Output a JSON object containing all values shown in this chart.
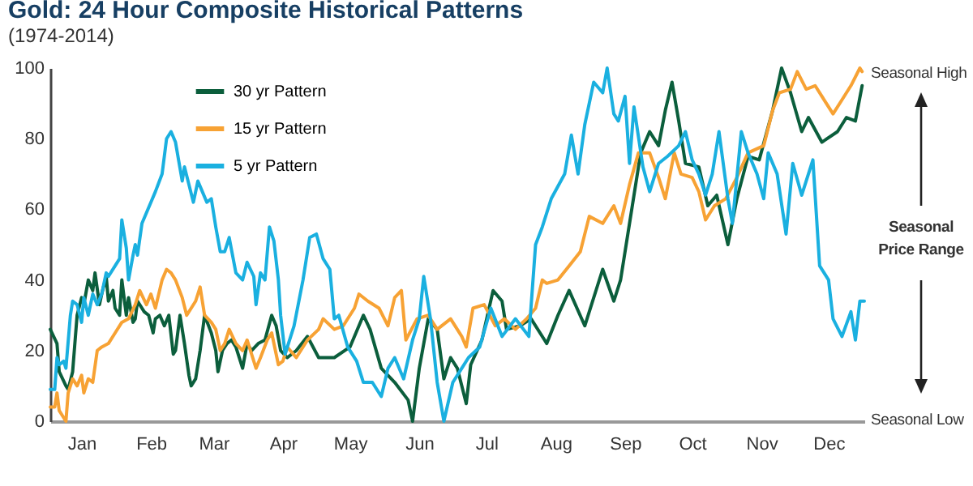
{
  "chart_data": {
    "type": "line",
    "title": "Gold: 24 Hour Composite Historical Patterns",
    "subtitle": "(1974-2014)",
    "annotations": [
      "Seasonal High",
      "Seasonal Price Range",
      "Seasonal Low"
    ],
    "xlim": [
      "--01-01",
      "--12-31"
    ],
    "xticks": [
      {
        "value": "--01-15",
        "label": "Jan"
      },
      {
        "value": "--02-15",
        "label": "Feb"
      },
      {
        "value": "--03-15",
        "label": "Mar"
      },
      {
        "value": "--04-15",
        "label": "Apr"
      },
      {
        "value": "--05-15",
        "label": "May"
      },
      {
        "value": "--06-15",
        "label": "Jun"
      },
      {
        "value": "--07-15",
        "label": "Jul"
      },
      {
        "value": "--08-15",
        "label": "Aug"
      },
      {
        "value": "--09-15",
        "label": "Sep"
      },
      {
        "value": "--10-15",
        "label": "Oct"
      },
      {
        "value": "--11-15",
        "label": "Nov"
      },
      {
        "value": "--12-15",
        "label": "Dec"
      }
    ],
    "ylim": [
      0,
      100
    ],
    "yticks": [
      0,
      20,
      40,
      60,
      80,
      100
    ],
    "grid": false,
    "legend": "top left",
    "line_style": "solid",
    "series": [
      {
        "name": "30 yr Pattern",
        "color": "#0b5e3c",
        "x": [
          "--01-01",
          "--01-04",
          "--01-05",
          "--01-08",
          "--01-09",
          "--01-11",
          "--01-13",
          "--01-15",
          "--01-16",
          "--01-18",
          "--01-20",
          "--01-21",
          "--01-23",
          "--01-24",
          "--01-26",
          "--01-27",
          "--01-29",
          "--01-30",
          "--02-01",
          "--02-02",
          "--02-04",
          "--02-05",
          "--02-07",
          "--02-08",
          "--02-09",
          "--02-12",
          "--02-14",
          "--02-16",
          "--02-17",
          "--02-19",
          "--02-21",
          "--02-23",
          "--02-25",
          "--02-26",
          "--02-28",
          "--03-02",
          "--03-04",
          "--03-05",
          "--03-07",
          "--03-09",
          "--03-11",
          "--03-14",
          "--03-16",
          "--03-17",
          "--03-19",
          "--03-21",
          "--03-23",
          "--03-25",
          "--03-28",
          "--03-30",
          "--04-01",
          "--04-04",
          "--04-07",
          "--04-10",
          "--04-12",
          "--04-14",
          "--04-17",
          "--04-21",
          "--04-26",
          "--05-01",
          "--05-08",
          "--05-15",
          "--05-21",
          "--05-24",
          "--05-29",
          "--06-04",
          "--06-10",
          "--06-12",
          "--06-15",
          "--06-19",
          "--06-23",
          "--06-26",
          "--06-29",
          "--07-02",
          "--07-06",
          "--07-08",
          "--07-13",
          "--07-18",
          "--07-22",
          "--07-24",
          "--07-30",
          "--08-04",
          "--08-10",
          "--08-11",
          "--08-16",
          "--08-21",
          "--08-28",
          "--09-05",
          "--09-10",
          "--09-13",
          "--09-17",
          "--09-22",
          "--09-26",
          "--09-30",
          "--10-03",
          "--10-06",
          "--10-09",
          "--10-12",
          "--10-18",
          "--10-22",
          "--10-26",
          "--10-31",
          "--11-04",
          "--11-09",
          "--11-14",
          "--11-20",
          "--11-24",
          "--11-28",
          "--12-03",
          "--12-06",
          "--12-12",
          "--12-19",
          "--12-23",
          "--12-27",
          "--12-30"
        ],
        "values": [
          26,
          22,
          14,
          10,
          9,
          14,
          30,
          35,
          33,
          40,
          37,
          42,
          33,
          36,
          41,
          34,
          37,
          32,
          30,
          40,
          30,
          35,
          28,
          29,
          34,
          31,
          30,
          25,
          29,
          30,
          27,
          30,
          19,
          20,
          30,
          22,
          13,
          10,
          12,
          20,
          30,
          25,
          20,
          14,
          20,
          22,
          23,
          21,
          15,
          22,
          20,
          22,
          23,
          30,
          27,
          20,
          18,
          20,
          24,
          18,
          18,
          21,
          30,
          26,
          15,
          11,
          6,
          0,
          15,
          29,
          26,
          12,
          18,
          15,
          5,
          16,
          23,
          37,
          34,
          26,
          27,
          29,
          23,
          22,
          30,
          37,
          27,
          43,
          34,
          40,
          56,
          76,
          82,
          78,
          88,
          96,
          85,
          73,
          72,
          61,
          64,
          50,
          63,
          75,
          74,
          88,
          100,
          93,
          82,
          86,
          79,
          82,
          86,
          85,
          95
        ]
      },
      {
        "name": "15 yr Pattern",
        "color": "#f7a234",
        "x": [
          "--01-01",
          "--01-03",
          "--01-04",
          "--01-05",
          "--01-08",
          "--01-09",
          "--01-11",
          "--01-13",
          "--01-15",
          "--01-16",
          "--01-18",
          "--01-20",
          "--01-22",
          "--01-24",
          "--01-27",
          "--01-30",
          "--02-02",
          "--02-05",
          "--02-08",
          "--02-10",
          "--02-13",
          "--02-15",
          "--02-17",
          "--02-20",
          "--02-22",
          "--02-24",
          "--02-26",
          "--03-01",
          "--03-03",
          "--03-05",
          "--03-07",
          "--03-09",
          "--03-11",
          "--03-14",
          "--03-16",
          "--03-18",
          "--03-20",
          "--03-22",
          "--03-25",
          "--03-28",
          "--03-30",
          "--04-01",
          "--04-03",
          "--04-05",
          "--04-08",
          "--04-10",
          "--04-13",
          "--04-15",
          "--04-17",
          "--04-21",
          "--04-26",
          "--05-01",
          "--05-03",
          "--05-08",
          "--05-12",
          "--05-17",
          "--05-19",
          "--05-23",
          "--05-28",
          "--06-01",
          "--06-04",
          "--06-07",
          "--06-09",
          "--06-14",
          "--06-19",
          "--06-23",
          "--06-29",
          "--07-04",
          "--07-06",
          "--07-09",
          "--07-14",
          "--07-19",
          "--07-23",
          "--07-28",
          "--08-02",
          "--08-06",
          "--08-09",
          "--08-11",
          "--08-16",
          "--08-21",
          "--08-26",
          "--08-30",
          "--09-05",
          "--09-10",
          "--09-13",
          "--09-17",
          "--09-21",
          "--09-26",
          "--09-30",
          "--10-03",
          "--10-07",
          "--10-10",
          "--10-15",
          "--10-18",
          "--10-21",
          "--10-25",
          "--10-30",
          "--11-04",
          "--11-09",
          "--11-16",
          "--11-20",
          "--11-23",
          "--11-28",
          "--12-01",
          "--12-05",
          "--12-09",
          "--12-14",
          "--12-17",
          "--12-21",
          "--12-25",
          "--12-29",
          "--12-30"
        ],
        "values": [
          4,
          4,
          8,
          3,
          0,
          8,
          12,
          10,
          13,
          8,
          12,
          11,
          20,
          21,
          22,
          25,
          28,
          29,
          33,
          37,
          33,
          36,
          32,
          40,
          43,
          42,
          40,
          35,
          30,
          32,
          34,
          38,
          30,
          28,
          26,
          20,
          22,
          26,
          22,
          20,
          23,
          19,
          15,
          18,
          23,
          25,
          16,
          17,
          21,
          18,
          23,
          26,
          29,
          26,
          27,
          32,
          36,
          34,
          32,
          27,
          35,
          37,
          23,
          29,
          30,
          26,
          29,
          24,
          21,
          32,
          33,
          27,
          29,
          26,
          29,
          32,
          40,
          39,
          40,
          44,
          48,
          58,
          56,
          61,
          56,
          67,
          76,
          76,
          69,
          63,
          76,
          70,
          69,
          65,
          57,
          61,
          63,
          69,
          76,
          78,
          88,
          93,
          94,
          99,
          94,
          95,
          90,
          87,
          91,
          95,
          100,
          99
        ]
      },
      {
        "name": "5 yr Pattern",
        "color": "#1ab0e0",
        "x": [
          "--01-01",
          "--01-03",
          "--01-04",
          "--01-05",
          "--01-07",
          "--01-08",
          "--01-10",
          "--01-11",
          "--01-13",
          "--01-15",
          "--01-16",
          "--01-18",
          "--01-20",
          "--01-22",
          "--01-24",
          "--01-26",
          "--01-27",
          "--01-30",
          "--02-01",
          "--02-02",
          "--02-04",
          "--02-05",
          "--02-07",
          "--02-08",
          "--02-09",
          "--02-11",
          "--02-13",
          "--02-15",
          "--02-17",
          "--02-20",
          "--02-22",
          "--02-24",
          "--02-26",
          "--03-01",
          "--03-02",
          "--03-04",
          "--03-06",
          "--03-08",
          "--03-10",
          "--03-12",
          "--03-14",
          "--03-16",
          "--03-18",
          "--03-20",
          "--03-22",
          "--03-25",
          "--03-28",
          "--03-30",
          "--04-02",
          "--04-03",
          "--04-05",
          "--04-07",
          "--04-09",
          "--04-11",
          "--04-13",
          "--04-14",
          "--04-16",
          "--04-20",
          "--04-24",
          "--04-27",
          "--04-30",
          "--05-03",
          "--05-06",
          "--05-08",
          "--05-10",
          "--05-14",
          "--05-18",
          "--05-21",
          "--05-25",
          "--05-29",
          "--06-01",
          "--06-04",
          "--06-08",
          "--06-12",
          "--06-15",
          "--06-17",
          "--06-20",
          "--06-23",
          "--06-26",
          "--06-30",
          "--07-04",
          "--07-07",
          "--07-12",
          "--07-17",
          "--07-22",
          "--07-28",
          "--08-03",
          "--08-06",
          "--08-09",
          "--08-13",
          "--08-19",
          "--08-22",
          "--08-25",
          "--08-28",
          "--09-01",
          "--09-05",
          "--09-07",
          "--09-10",
          "--09-12",
          "--09-15",
          "--09-17",
          "--09-19",
          "--09-23",
          "--09-26",
          "--09-30",
          "--10-04",
          "--10-09",
          "--10-12",
          "--10-15",
          "--10-18",
          "--10-21",
          "--10-24",
          "--10-27",
          "--10-31",
          "--11-02",
          "--11-06",
          "--11-09",
          "--11-13",
          "--11-16",
          "--11-18",
          "--11-22",
          "--11-26",
          "--11-29",
          "--12-03",
          "--12-08",
          "--12-11",
          "--12-15",
          "--12-17",
          "--12-21",
          "--12-25",
          "--12-27",
          "--12-29",
          "--12-31"
        ],
        "values": [
          9,
          9,
          18,
          16,
          17,
          15,
          30,
          34,
          33,
          28,
          35,
          30,
          36,
          33,
          36,
          42,
          41,
          44,
          46,
          57,
          49,
          40,
          47,
          50,
          47,
          56,
          59,
          62,
          65,
          70,
          80,
          82,
          79,
          68,
          72,
          67,
          62,
          68,
          65,
          62,
          63,
          55,
          48,
          48,
          52,
          42,
          40,
          45,
          41,
          33,
          42,
          40,
          55,
          51,
          40,
          30,
          19,
          27,
          40,
          52,
          53,
          46,
          43,
          29,
          30,
          21,
          17,
          11,
          11,
          7,
          15,
          18,
          12,
          23,
          29,
          41,
          29,
          11,
          0,
          11,
          15,
          18,
          21,
          32,
          24,
          29,
          24,
          50,
          55,
          63,
          70,
          81,
          70,
          84,
          96,
          93,
          100,
          87,
          85,
          92,
          73,
          89,
          72,
          65,
          73,
          75,
          78,
          82,
          74,
          70,
          64,
          70,
          82,
          63,
          56,
          82,
          76,
          70,
          63,
          76,
          70,
          53,
          73,
          64,
          74,
          44,
          40,
          29,
          24,
          31,
          23,
          34,
          34
        ]
      }
    ]
  }
}
